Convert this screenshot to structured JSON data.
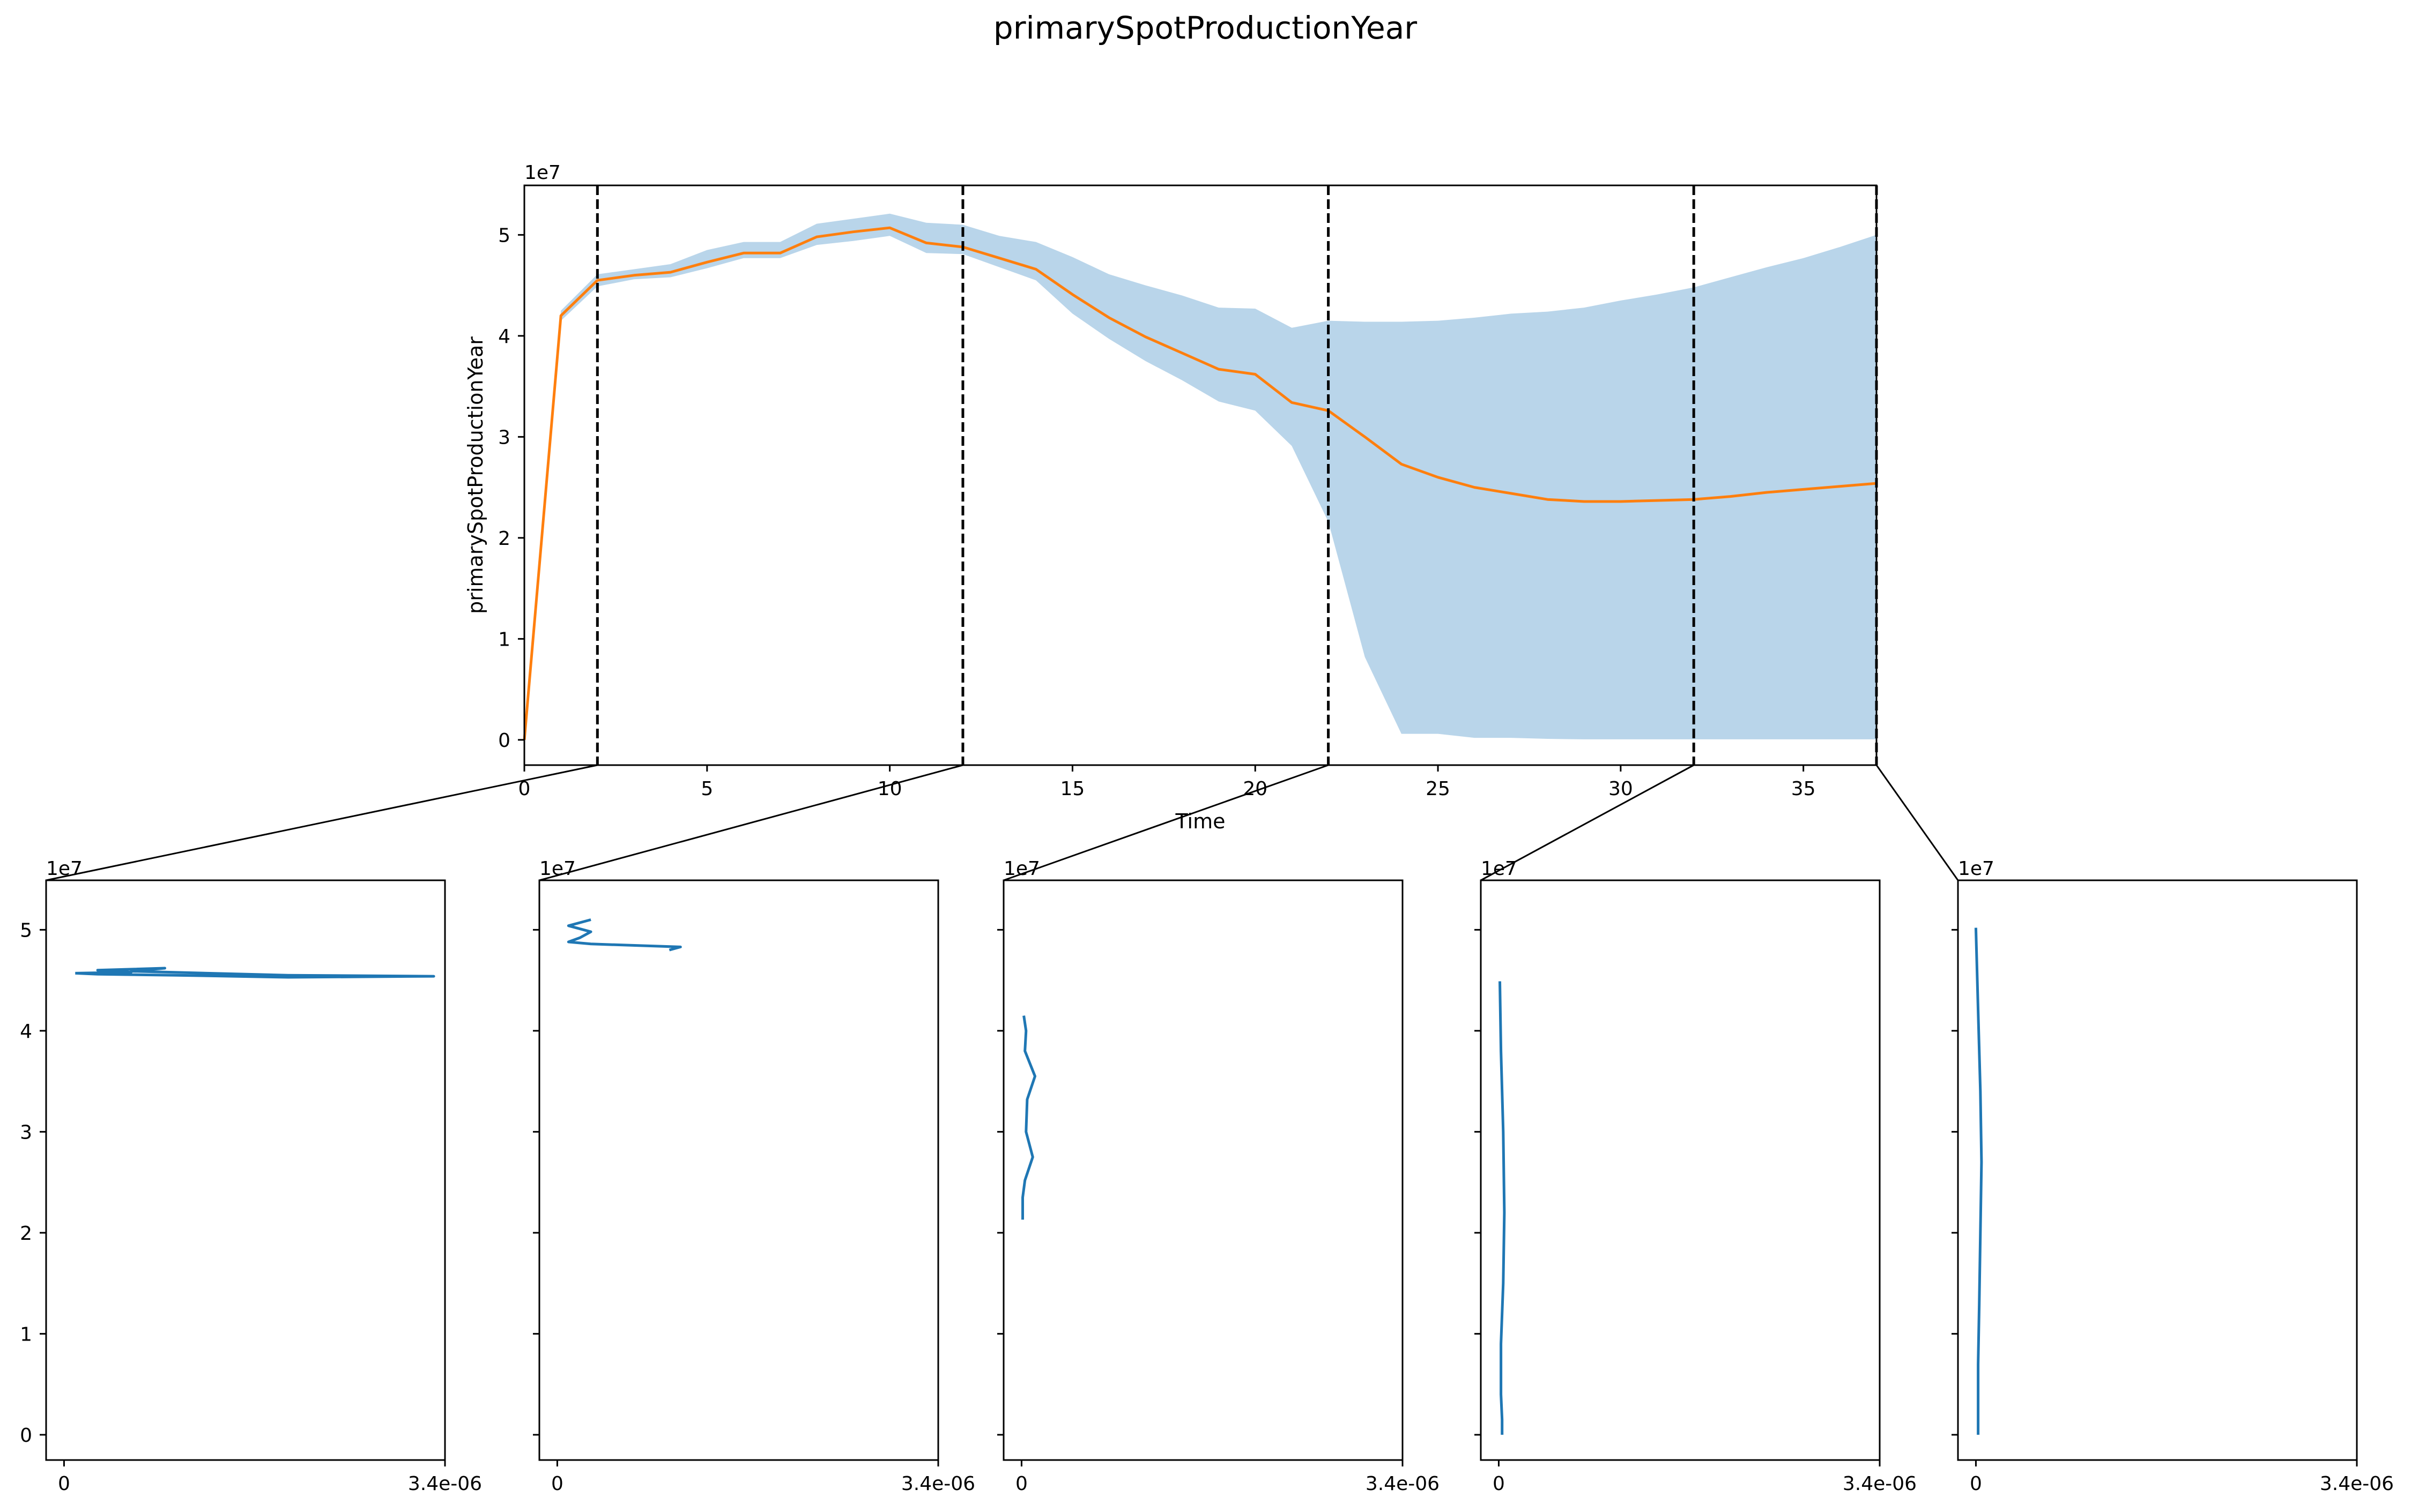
{
  "figure": {
    "title": "primarySpotProductionYear",
    "colors": {
      "mean_line": "#ff7f0e",
      "band": "#b9d5ea",
      "slice_line": "#1f77b4",
      "divider": "#000000"
    }
  },
  "chart_data": [
    {
      "type": "area",
      "title": "primarySpotProductionYear",
      "xlabel": "Time",
      "ylabel": "primarySpotProductionYear",
      "y_offset_label": "1e7",
      "xlim": [
        0,
        37
      ],
      "ylim": [
        -2500000,
        54900000
      ],
      "xticks": [
        0,
        5,
        10,
        15,
        20,
        25,
        30,
        35
      ],
      "yticks": [
        0,
        10000000,
        20000000,
        30000000,
        40000000,
        50000000
      ],
      "ytick_labels": [
        "0",
        "1",
        "2",
        "3",
        "4",
        "5"
      ],
      "legend": "none",
      "grid": false,
      "dividers_x": [
        2,
        12,
        22,
        32,
        37
      ],
      "x": [
        0,
        1,
        2,
        3,
        4,
        5,
        6,
        7,
        8,
        9,
        10,
        11,
        12,
        13,
        14,
        15,
        16,
        17,
        18,
        19,
        20,
        21,
        22,
        23,
        24,
        25,
        26,
        27,
        28,
        29,
        30,
        31,
        32,
        33,
        34,
        35,
        36,
        37
      ],
      "series": [
        {
          "kind": "line",
          "values": [
            0,
            42000000,
            45500000,
            46000000,
            46300000,
            47300000,
            48200000,
            48200000,
            49800000,
            50300000,
            50700000,
            49200000,
            48800000,
            47700000,
            46600000,
            44100000,
            41800000,
            39900000,
            38300000,
            36700000,
            36200000,
            33400000,
            32600000,
            30000000,
            27300000,
            26000000,
            25000000,
            24400000,
            23800000,
            23600000,
            23600000,
            23700000,
            23800000,
            24100000,
            24500000,
            24800000,
            25100000,
            25400000
          ]
        },
        {
          "kind": "band",
          "upper": [
            0,
            42500000,
            46100000,
            46600000,
            47100000,
            48500000,
            49300000,
            49300000,
            51100000,
            51600000,
            52100000,
            51200000,
            51000000,
            49900000,
            49300000,
            47800000,
            46100000,
            45000000,
            44000000,
            42800000,
            42700000,
            40800000,
            41500000,
            41400000,
            41400000,
            41500000,
            41800000,
            42200000,
            42400000,
            42800000,
            43500000,
            44100000,
            44800000,
            45800000,
            46800000,
            47700000,
            48800000,
            50000000
          ],
          "lower": [
            0,
            41500000,
            44900000,
            45600000,
            45800000,
            46700000,
            47700000,
            47700000,
            49000000,
            49400000,
            49900000,
            48200000,
            48100000,
            46800000,
            45500000,
            42200000,
            39700000,
            37500000,
            35600000,
            33500000,
            32600000,
            29100000,
            21600000,
            8200000,
            600000,
            600000,
            200000,
            200000,
            100000,
            50000,
            50000,
            50000,
            50000,
            50000,
            50000,
            50000,
            50000,
            50000
          ]
        }
      ]
    },
    {
      "type": "line",
      "panel": 1,
      "x_window": [
        0,
        2
      ],
      "xlim": [
        -1.6e-07,
        3.4e-06
      ],
      "ylim": [
        -2500000,
        54900000
      ],
      "xtick_labels": [
        "0",
        "3.4e-06"
      ],
      "ytick_labels": [
        "0",
        "1",
        "2",
        "3",
        "4",
        "5"
      ],
      "y_offset_label": "1e7",
      "series": [
        {
          "x": [
            1e-07,
            6e-07,
            3e-07,
            9e-07,
            6e-07,
            2e-06,
            3.3e-06,
            2e-06,
            1e-06,
            3e-07,
            1e-07
          ],
          "y": [
            45700000,
            45800000,
            46000000,
            46200000,
            45900000,
            45500000,
            45400000,
            45300000,
            45500000,
            45600000,
            45700000
          ]
        }
      ]
    },
    {
      "type": "line",
      "panel": 2,
      "x_window": [
        2,
        12
      ],
      "xlim": [
        -1.6e-07,
        3.4e-06
      ],
      "ylim": [
        -2500000,
        54900000
      ],
      "xtick_labels": [
        "0",
        "3.4e-06"
      ],
      "ytick_labels": [],
      "y_offset_label": "1e7",
      "series": [
        {
          "x": [
            3e-07,
            1e-07,
            3e-07,
            2e-07,
            1e-07,
            3e-07,
            1.1e-06,
            1e-06
          ],
          "y": [
            51000000,
            50400000,
            49800000,
            49200000,
            48800000,
            48600000,
            48300000,
            48000000
          ]
        }
      ]
    },
    {
      "type": "line",
      "panel": 3,
      "x_window": [
        12,
        22
      ],
      "xlim": [
        -1.6e-07,
        3.4e-06
      ],
      "ylim": [
        -2500000,
        54900000
      ],
      "xtick_labels": [
        "0",
        "3.4e-06"
      ],
      "ytick_labels": [],
      "y_offset_label": "1e7",
      "series": [
        {
          "x": [
            2e-08,
            4e-08,
            3e-08,
            1.2e-07,
            5e-08,
            4e-08,
            1e-07,
            3e-08,
            1e-08,
            1e-08
          ],
          "y": [
            41500000,
            40000000,
            38000000,
            35500000,
            33200000,
            30000000,
            27500000,
            25200000,
            23500000,
            21300000
          ]
        }
      ]
    },
    {
      "type": "line",
      "panel": 4,
      "x_window": [
        22,
        32
      ],
      "xlim": [
        -1.6e-07,
        3.4e-06
      ],
      "ylim": [
        -2500000,
        54900000
      ],
      "xtick_labels": [
        "0",
        "3.4e-06"
      ],
      "ytick_labels": [],
      "y_offset_label": "1e7",
      "series": [
        {
          "x": [
            1e-08,
            2e-08,
            4e-08,
            5e-08,
            4e-08,
            2e-08,
            2e-08,
            3e-08,
            3e-08
          ],
          "y": [
            44900000,
            38000000,
            30000000,
            22000000,
            15000000,
            9000000,
            4000000,
            1500000,
            0
          ]
        }
      ]
    },
    {
      "type": "line",
      "panel": 5,
      "x_window": [
        32,
        37
      ],
      "xlim": [
        -1.6e-07,
        3.4e-06
      ],
      "ylim": [
        -2500000,
        54900000
      ],
      "xtick_labels": [
        "0",
        "3.4e-06"
      ],
      "ytick_labels": [],
      "y_offset_label": "1e7",
      "series": [
        {
          "x": [
            0,
            2e-08,
            4e-08,
            5e-08,
            4e-08,
            3e-08,
            2e-08,
            2e-08,
            2e-08
          ],
          "y": [
            50200000,
            42000000,
            34000000,
            27000000,
            20000000,
            13000000,
            7000000,
            2500000,
            0
          ]
        }
      ]
    }
  ]
}
